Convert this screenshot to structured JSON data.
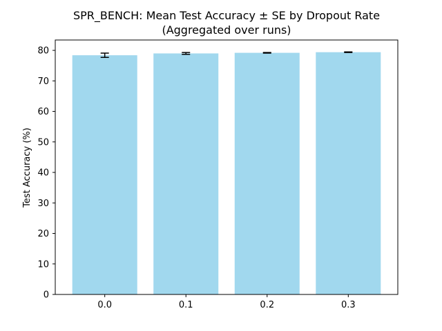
{
  "chart_data": {
    "type": "bar",
    "title_line1": "SPR_BENCH: Mean Test Accuracy ± SE by Dropout Rate",
    "title_line2": "(Aggregated over runs)",
    "xlabel": "",
    "ylabel": "Test Accuracy (%)",
    "categories": [
      "0.0",
      "0.1",
      "0.2",
      "0.3"
    ],
    "values": [
      78.4,
      79.0,
      79.2,
      79.4
    ],
    "errors": [
      0.7,
      0.3,
      0.1,
      0.1
    ],
    "ylim": [
      0,
      83.4
    ],
    "yticks": [
      0,
      10,
      20,
      30,
      40,
      50,
      60,
      70,
      80
    ],
    "grid": false,
    "bar_color": "#a1d8ee",
    "error_color": "#000000"
  }
}
